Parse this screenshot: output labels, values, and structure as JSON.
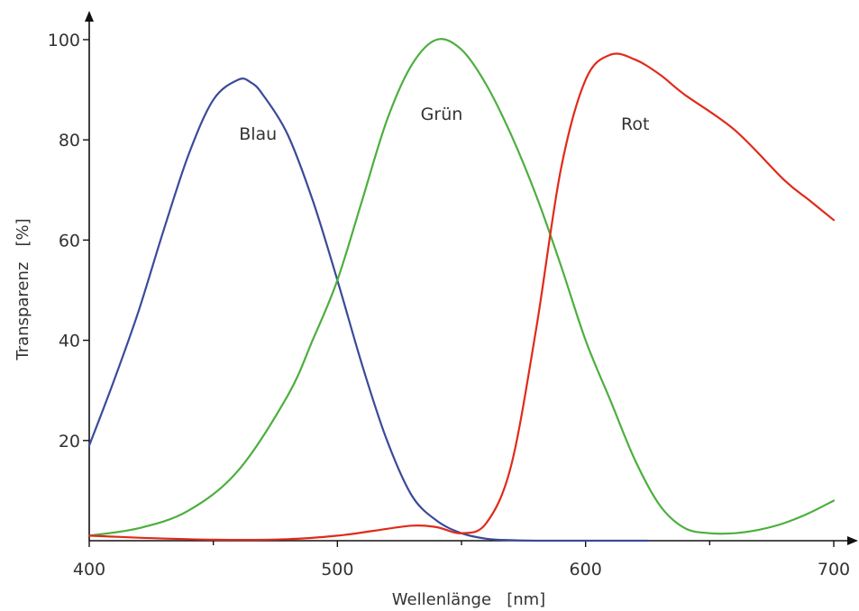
{
  "chart_data": {
    "type": "line",
    "title": "",
    "xlabel": "Wellenlänge   [nm]",
    "ylabel": "Transparenz   [%]",
    "xlim": [
      400,
      700
    ],
    "ylim": [
      0,
      100
    ],
    "x_ticks": [
      400,
      500,
      600,
      700
    ],
    "x_minor_ticks": [
      450,
      550,
      650
    ],
    "y_ticks": [
      20,
      40,
      60,
      80,
      100
    ],
    "grid": false,
    "legend": "none",
    "series": [
      {
        "name": "Blau",
        "color": "#3a4a9a",
        "x": [
          400,
          410,
          420,
          430,
          440,
          450,
          460,
          465,
          470,
          480,
          490,
          500,
          510,
          520,
          530,
          540,
          550,
          560,
          570,
          580,
          600,
          625
        ],
        "y": [
          19,
          32,
          46,
          62,
          77,
          88,
          92,
          91.5,
          89,
          81,
          68,
          52,
          35,
          20,
          9,
          4,
          1.5,
          0.4,
          0.1,
          0,
          0,
          0
        ]
      },
      {
        "name": "Grün",
        "color": "#4caf3e",
        "x": [
          400,
          420,
          440,
          460,
          480,
          490,
          500,
          510,
          520,
          530,
          540,
          550,
          560,
          570,
          580,
          590,
          600,
          610,
          620,
          630,
          640,
          650,
          660,
          670,
          680,
          690,
          700
        ],
        "y": [
          1,
          2.5,
          6,
          14,
          29,
          40,
          52,
          68,
          84,
          95,
          100,
          98,
          91,
          81,
          69,
          55,
          40,
          28,
          16,
          7,
          2.5,
          1.5,
          1.5,
          2.2,
          3.5,
          5.5,
          8
        ]
      },
      {
        "name": "Rot",
        "color": "#e02a1a",
        "x": [
          400,
          420,
          450,
          480,
          500,
          515,
          530,
          540,
          550,
          560,
          570,
          580,
          590,
          600,
          610,
          620,
          630,
          640,
          660,
          680,
          690,
          700
        ],
        "y": [
          1,
          0.6,
          0.2,
          0.3,
          1,
          2,
          3,
          2.7,
          1.5,
          3.5,
          15,
          42,
          74,
          92,
          97,
          96,
          93,
          89,
          82,
          72,
          68,
          64
        ]
      }
    ],
    "annotations": [
      {
        "text": "Blau",
        "x": 468,
        "y": 80
      },
      {
        "text": "Grün",
        "x": 542,
        "y": 84
      },
      {
        "text": "Rot",
        "x": 620,
        "y": 82
      }
    ]
  }
}
